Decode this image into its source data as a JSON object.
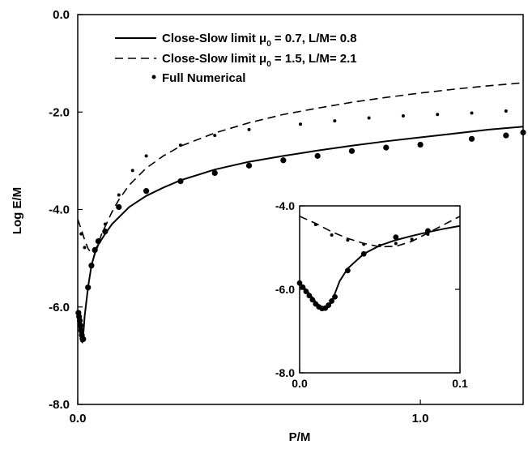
{
  "chart_data": [
    {
      "type": "line",
      "title": "",
      "xlabel": "P/M",
      "ylabel": "Log E/M",
      "xlim": [
        0,
        1.3
      ],
      "ylim": [
        -8,
        0
      ],
      "xticks": [
        {
          "value": 0,
          "label": "0.0"
        },
        {
          "value": 1,
          "label": "1.0"
        }
      ],
      "yticks": [
        {
          "value": 0,
          "label": "0.0"
        },
        {
          "value": -2,
          "label": "-2.0"
        },
        {
          "value": -4,
          "label": "-4.0"
        },
        {
          "value": -6,
          "label": "-6.0"
        },
        {
          "value": -8,
          "label": "-8.0"
        }
      ],
      "legend_position": "top-center",
      "series": [
        {
          "name": "Close-Slow limit μ0 = 0.7, L/M= 0.8",
          "style": "solid",
          "x": [
            0,
            0.003,
            0.006,
            0.01,
            0.013,
            0.017,
            0.02,
            0.03,
            0.04,
            0.05,
            0.06,
            0.08,
            0.1,
            0.15,
            0.2,
            0.25,
            0.3,
            0.4,
            0.5,
            0.6,
            0.7,
            0.8,
            0.9,
            1.0,
            1.1,
            1.2,
            1.3
          ],
          "y": [
            -6.1,
            -6.3,
            -6.5,
            -6.7,
            -6.72,
            -6.5,
            -6.2,
            -5.6,
            -5.15,
            -4.9,
            -4.72,
            -4.5,
            -4.3,
            -3.95,
            -3.72,
            -3.55,
            -3.4,
            -3.18,
            -3.02,
            -2.9,
            -2.79,
            -2.69,
            -2.6,
            -2.52,
            -2.44,
            -2.36,
            -2.3
          ]
        },
        {
          "name": "Close-Slow limit μ0 = 1.5, L/M= 2.1",
          "style": "dashed",
          "x": [
            0,
            0.01,
            0.02,
            0.03,
            0.04,
            0.05,
            0.06,
            0.07,
            0.08,
            0.1,
            0.12,
            0.15,
            0.2,
            0.25,
            0.3,
            0.4,
            0.5,
            0.6,
            0.7,
            0.8,
            0.9,
            1.0,
            1.1,
            1.2,
            1.3
          ],
          "y": [
            -4.2,
            -4.4,
            -4.62,
            -4.8,
            -4.9,
            -4.85,
            -4.7,
            -4.5,
            -4.35,
            -4.05,
            -3.8,
            -3.5,
            -3.15,
            -2.9,
            -2.7,
            -2.43,
            -2.22,
            -2.05,
            -1.92,
            -1.8,
            -1.7,
            -1.61,
            -1.53,
            -1.46,
            -1.4
          ]
        },
        {
          "name": "Full Numerical",
          "style": "points",
          "x": [
            0.002,
            0.004,
            0.006,
            0.008,
            0.01,
            0.012,
            0.014,
            0.016,
            0.03,
            0.04,
            0.05,
            0.06,
            0.08,
            0.12,
            0.2,
            0.3,
            0.4,
            0.5,
            0.6,
            0.7,
            0.8,
            0.9,
            1.0,
            1.15,
            1.25,
            1.3,
            0.01,
            0.02,
            0.05,
            0.08,
            0.12,
            0.16,
            0.2,
            0.3,
            0.4,
            0.5,
            0.65,
            0.75,
            0.85,
            0.95,
            1.05,
            1.15,
            1.25,
            1.33
          ],
          "y": [
            -6.12,
            -6.2,
            -6.28,
            -6.38,
            -6.48,
            -6.58,
            -6.65,
            -6.66,
            -5.6,
            -5.15,
            -4.83,
            -4.65,
            -4.45,
            -3.95,
            -3.62,
            -3.42,
            -3.25,
            -3.1,
            -2.99,
            -2.9,
            -2.8,
            -2.73,
            -2.67,
            -2.55,
            -2.48,
            -2.42,
            -4.5,
            -4.78,
            -4.82,
            -4.3,
            -3.7,
            -3.2,
            -2.9,
            -2.68,
            -2.48,
            -2.36,
            -2.25,
            -2.18,
            -2.12,
            -2.08,
            -2.05,
            -2.02,
            -1.98,
            -1.92
          ]
        }
      ]
    },
    {
      "type": "line",
      "title": "",
      "xlim": [
        0,
        0.1
      ],
      "ylim": [
        -8,
        -4
      ],
      "xticks": [
        {
          "value": 0,
          "label": "0.0"
        },
        {
          "value": 0.1,
          "label": "0.1"
        }
      ],
      "yticks": [
        {
          "value": -4,
          "label": "-4.0"
        },
        {
          "value": -6,
          "label": "-6.0"
        },
        {
          "value": -8,
          "label": "-8.0"
        }
      ],
      "series": [
        {
          "name": "Close-Slow limit μ0 = 0.7, L/M= 0.8",
          "style": "solid",
          "x": [
            0,
            0.005,
            0.01,
            0.013,
            0.015,
            0.017,
            0.02,
            0.025,
            0.03,
            0.04,
            0.05,
            0.06,
            0.07,
            0.08,
            0.09,
            0.1
          ],
          "y": [
            -5.85,
            -6.05,
            -6.3,
            -6.42,
            -6.48,
            -6.46,
            -6.3,
            -5.8,
            -5.5,
            -5.15,
            -4.95,
            -4.82,
            -4.72,
            -4.63,
            -4.55,
            -4.48
          ]
        },
        {
          "name": "Close-Slow limit μ0 = 1.5, L/M= 2.1",
          "style": "dashed",
          "x": [
            0,
            0.01,
            0.02,
            0.03,
            0.04,
            0.05,
            0.06,
            0.07,
            0.08,
            0.09,
            0.1
          ],
          "y": [
            -4.25,
            -4.42,
            -4.62,
            -4.78,
            -4.9,
            -4.98,
            -4.97,
            -4.85,
            -4.65,
            -4.45,
            -4.25
          ]
        },
        {
          "name": "Full Numerical",
          "style": "points",
          "x": [
            0,
            0.002,
            0.004,
            0.006,
            0.008,
            0.01,
            0.012,
            0.014,
            0.016,
            0.018,
            0.02,
            0.022,
            0.03,
            0.04,
            0.06,
            0.08,
            0.01,
            0.02,
            0.03,
            0.04,
            0.05,
            0.06,
            0.07,
            0.08
          ],
          "y": [
            -5.85,
            -5.95,
            -6.05,
            -6.15,
            -6.25,
            -6.35,
            -6.42,
            -6.46,
            -6.45,
            -6.38,
            -6.28,
            -6.18,
            -5.55,
            -5.15,
            -4.75,
            -4.6,
            -4.45,
            -4.7,
            -4.82,
            -4.92,
            -4.95,
            -4.9,
            -4.8,
            -4.68
          ]
        }
      ]
    }
  ],
  "legend": [
    {
      "style": "solid",
      "text_prefix": "Close-Slow limit μ",
      "subscript": "0",
      "text_suffix": " = 0.7, L/M= 0.8"
    },
    {
      "style": "dashed",
      "text_prefix": "Close-Slow limit μ",
      "subscript": "0",
      "text_suffix": " = 1.5, L/M= 2.1"
    },
    {
      "style": "points",
      "text_prefix": "Full Numerical",
      "subscript": "",
      "text_suffix": ""
    }
  ]
}
